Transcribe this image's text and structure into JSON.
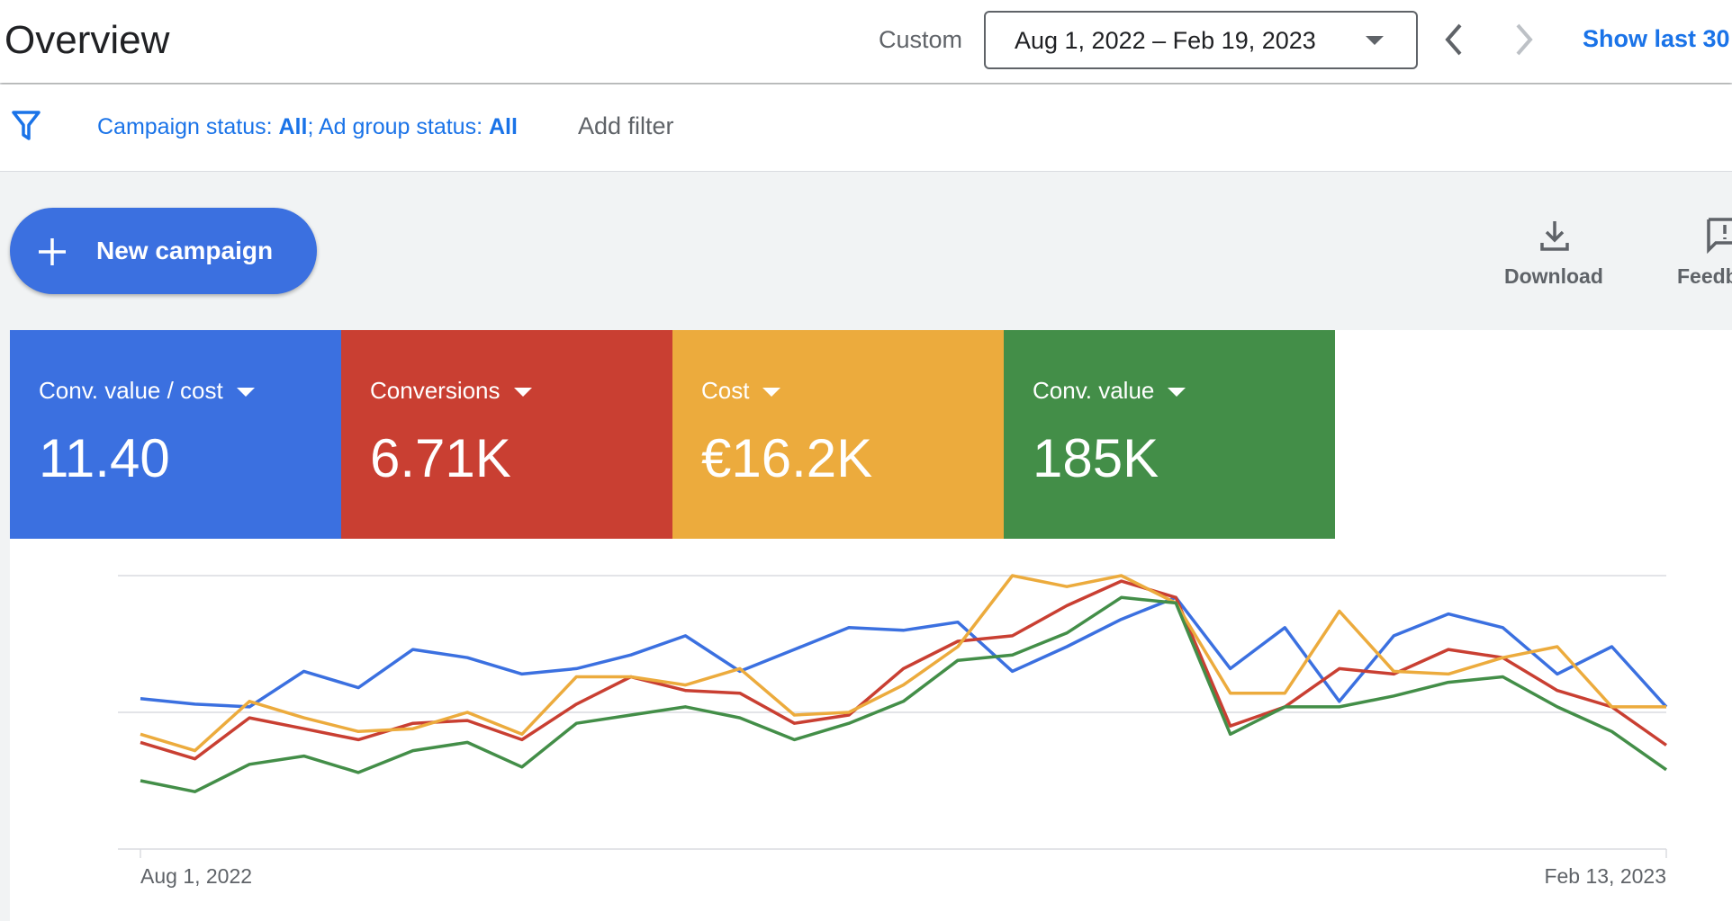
{
  "header": {
    "title": "Overview",
    "range_label": "Custom",
    "date_range": "Aug 1, 2022 – Feb 19, 2023",
    "show_last": "Show last 30"
  },
  "filters": {
    "campaign_label": "Campaign status: ",
    "campaign_value": "All",
    "ad_group_label": "; Ad group status: ",
    "ad_group_value": "All",
    "add_filter": "Add filter"
  },
  "toolbar": {
    "new_campaign": "New campaign",
    "download": "Download",
    "feedback": "Feedb"
  },
  "chart_data": {
    "type": "line",
    "categories": [
      "Aug 1, 2022",
      null,
      null,
      null,
      null,
      null,
      null,
      null,
      null,
      null,
      null,
      null,
      null,
      null,
      null,
      null,
      null,
      null,
      null,
      null,
      null,
      null,
      null,
      null,
      null,
      null,
      null,
      null,
      "Feb 13, 2023"
    ],
    "ylim": [
      0,
      100
    ],
    "yticks": [
      0,
      50,
      100
    ],
    "grid": true,
    "series": [
      {
        "name": "Conv. value / cost",
        "total": "11.40",
        "color": "#3b70e0",
        "values": [
          55,
          53,
          52,
          65,
          59,
          73,
          70,
          64,
          66,
          71,
          78,
          65,
          73,
          81,
          80,
          83,
          65,
          74,
          84,
          92,
          66,
          81,
          54,
          78,
          86,
          81,
          64,
          74,
          52
        ]
      },
      {
        "name": "Conversions",
        "total": "6.71K",
        "color": "#c93f32",
        "values": [
          39,
          33,
          48,
          44,
          40,
          46,
          47,
          40,
          53,
          63,
          58,
          57,
          46,
          49,
          66,
          76,
          78,
          89,
          98,
          92,
          45,
          52,
          66,
          64,
          73,
          70,
          58,
          52,
          38
        ]
      },
      {
        "name": "Cost",
        "total": "€16.2K",
        "color": "#ecab3d",
        "values": [
          42,
          36,
          54,
          48,
          43,
          44,
          50,
          42,
          63,
          63,
          60,
          66,
          49,
          50,
          60,
          74,
          100,
          96,
          100,
          90,
          57,
          57,
          87,
          65,
          64,
          70,
          74,
          52,
          52
        ]
      },
      {
        "name": "Conv. value",
        "total": "185K",
        "color": "#438e48",
        "values": [
          25,
          21,
          31,
          34,
          28,
          36,
          39,
          30,
          46,
          49,
          52,
          48,
          40,
          46,
          54,
          69,
          71,
          79,
          92,
          90,
          42,
          52,
          52,
          56,
          61,
          63,
          52,
          43,
          29
        ]
      }
    ]
  }
}
